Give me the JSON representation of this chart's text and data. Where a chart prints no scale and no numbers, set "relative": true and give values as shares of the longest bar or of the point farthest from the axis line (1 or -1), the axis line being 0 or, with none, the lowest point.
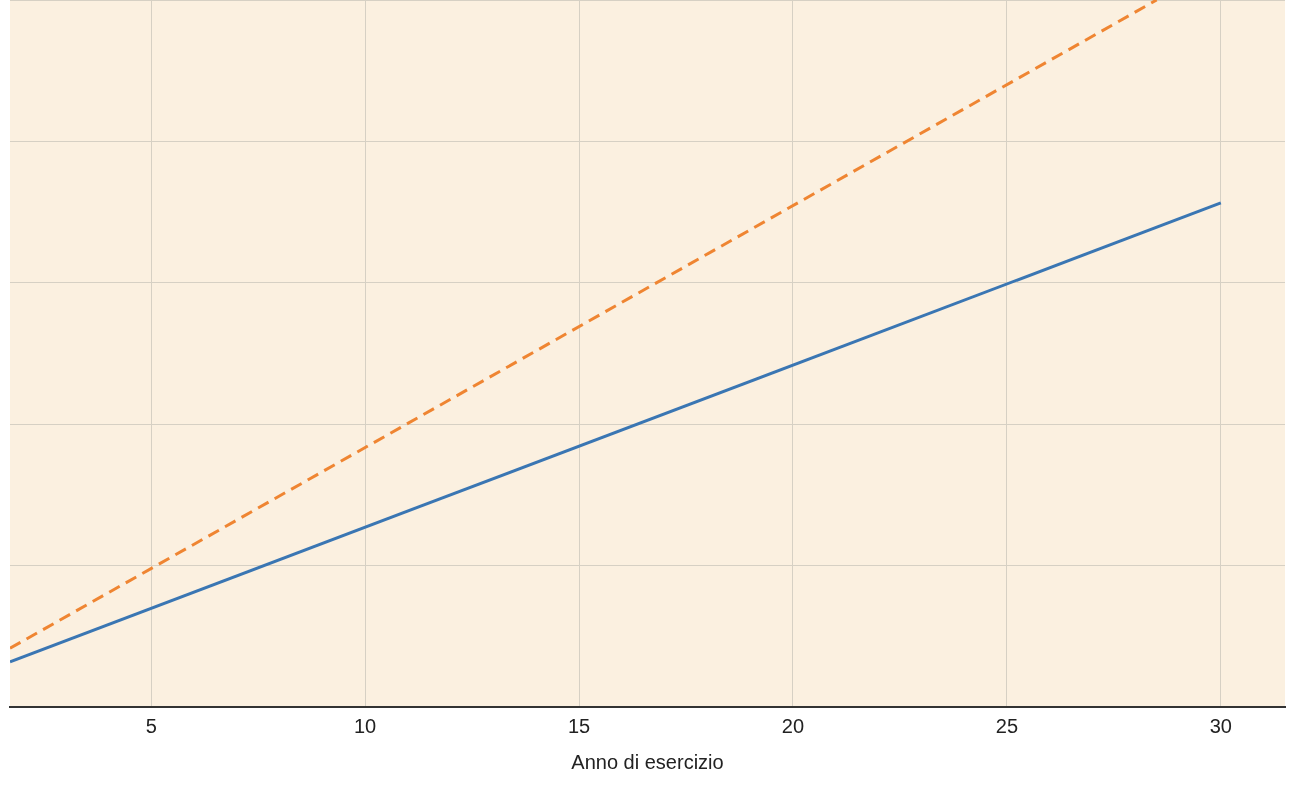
{
  "chart_data": {
    "type": "line",
    "xlabel": "Anno di esercizio",
    "relative": true,
    "xlim": [
      1.7,
      31.5
    ],
    "xticks": [
      5,
      10,
      15,
      20,
      25,
      30
    ],
    "grid": true,
    "legend": false,
    "series": [
      {
        "color": "#3a76b3",
        "line_style": "solid",
        "x": [
          1.7,
          30
        ],
        "values": [
          0.064,
          0.713
        ]
      },
      {
        "color": "#ef8532",
        "line_style": "dashed",
        "x": [
          1.7,
          28.5
        ],
        "values": [
          0.083,
          1
        ]
      }
    ]
  }
}
